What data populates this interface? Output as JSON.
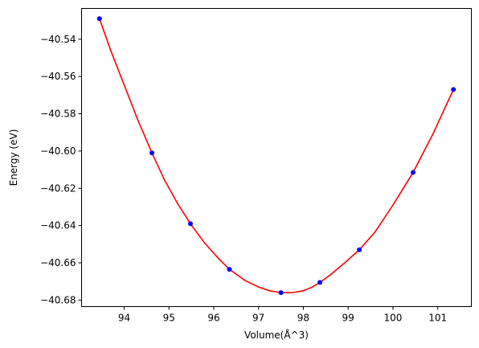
{
  "chart_data": {
    "type": "scatter",
    "title": "",
    "xlabel": "Volume(Å^3)",
    "ylabel": "Energy (eV)",
    "xlim": [
      93.05,
      101.75
    ],
    "ylim": [
      -40.6835,
      -40.5235
    ],
    "xticks": [
      94,
      95,
      96,
      97,
      98,
      99,
      100,
      101
    ],
    "xtick_labels": [
      "94",
      "95",
      "96",
      "97",
      "98",
      "99",
      "100",
      "101"
    ],
    "yticks": [
      -40.54,
      -40.56,
      -40.58,
      -40.6,
      -40.62,
      -40.64,
      -40.66,
      -40.68
    ],
    "ytick_labels": [
      "−40.54",
      "−40.56",
      "−40.58",
      "−40.60",
      "−40.62",
      "−40.64",
      "−40.66",
      "−40.68"
    ],
    "grid": false,
    "series": [
      {
        "kind": "points",
        "color": "#0000ff",
        "x": [
          93.45,
          94.62,
          95.48,
          96.35,
          97.5,
          98.37,
          99.25,
          100.45,
          101.35
        ],
        "y": [
          -40.529,
          -40.601,
          -40.639,
          -40.6635,
          -40.676,
          -40.6705,
          -40.653,
          -40.6115,
          -40.567
        ]
      },
      {
        "kind": "fit-line",
        "color": "#ff0000",
        "x": [
          93.45,
          93.7,
          94.0,
          94.3,
          94.62,
          94.9,
          95.2,
          95.48,
          95.8,
          96.1,
          96.35,
          96.7,
          97.0,
          97.25,
          97.5,
          97.75,
          98.0,
          98.2,
          98.37,
          98.6,
          98.9,
          99.25,
          99.6,
          100.0,
          100.45,
          100.9,
          101.35
        ],
        "y": [
          -40.529,
          -40.546,
          -40.5645,
          -40.583,
          -40.601,
          -40.6155,
          -40.6285,
          -40.639,
          -40.6495,
          -40.6575,
          -40.6635,
          -40.6695,
          -40.673,
          -40.675,
          -40.676,
          -40.676,
          -40.675,
          -40.673,
          -40.6705,
          -40.6665,
          -40.6605,
          -40.653,
          -40.6435,
          -40.629,
          -40.6115,
          -40.5905,
          -40.567
        ]
      }
    ]
  }
}
